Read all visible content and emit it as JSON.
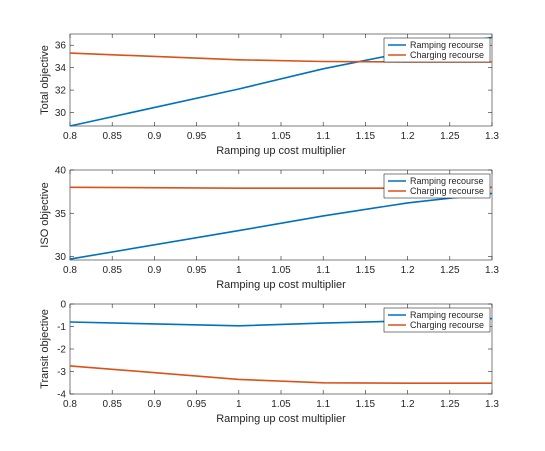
{
  "chart_data": [
    {
      "type": "line",
      "xlabel": "Ramping up cost multiplier",
      "ylabel": "Total objective",
      "xlim": [
        0.8,
        1.3
      ],
      "ylim": [
        28.8,
        37
      ],
      "xticks": [
        0.8,
        0.85,
        0.9,
        0.95,
        1,
        1.05,
        1.1,
        1.15,
        1.2,
        1.25,
        1.3
      ],
      "xtick_labels": [
        "0.8",
        "0.85",
        "0.9",
        "0.95",
        "1",
        "1.05",
        "1.1",
        "1.15",
        "1.2",
        "1.25",
        "1.3"
      ],
      "yticks": [
        30,
        32,
        34,
        36
      ],
      "ytick_labels": [
        "30",
        "32",
        "34",
        "36"
      ],
      "legend_position": "top-right",
      "series": [
        {
          "name": "Ramping recourse",
          "color": "#0072BD",
          "x": [
            0.8,
            1.0,
            1.1,
            1.2,
            1.3
          ],
          "y": [
            28.8,
            32.1,
            33.9,
            35.4,
            36.7
          ]
        },
        {
          "name": "Charging recourse",
          "color": "#D95319",
          "x": [
            0.8,
            1.0,
            1.1,
            1.2,
            1.3
          ],
          "y": [
            35.3,
            34.7,
            34.55,
            34.5,
            34.5
          ]
        }
      ]
    },
    {
      "type": "line",
      "xlabel": "Ramping up cost multiplier",
      "ylabel": "ISO objective",
      "xlim": [
        0.8,
        1.3
      ],
      "ylim": [
        29.6,
        40
      ],
      "xticks": [
        0.8,
        0.85,
        0.9,
        0.95,
        1,
        1.05,
        1.1,
        1.15,
        1.2,
        1.25,
        1.3
      ],
      "xtick_labels": [
        "0.8",
        "0.85",
        "0.9",
        "0.95",
        "1",
        "1.05",
        "1.1",
        "1.15",
        "1.2",
        "1.25",
        "1.3"
      ],
      "yticks": [
        30,
        35,
        40
      ],
      "ytick_labels": [
        "30",
        "35",
        "40"
      ],
      "legend_position": "top-right",
      "series": [
        {
          "name": "Ramping recourse",
          "color": "#0072BD",
          "x": [
            0.8,
            1.0,
            1.1,
            1.2,
            1.3
          ],
          "y": [
            29.7,
            33.0,
            34.7,
            36.2,
            37.3
          ]
        },
        {
          "name": "Charging recourse",
          "color": "#D95319",
          "x": [
            0.8,
            1.0,
            1.1,
            1.2,
            1.3
          ],
          "y": [
            38.0,
            37.9,
            37.9,
            37.9,
            38.0
          ]
        }
      ]
    },
    {
      "type": "line",
      "xlabel": "Ramping up cost multiplier",
      "ylabel": "Transit objective",
      "xlim": [
        0.8,
        1.3
      ],
      "ylim": [
        -4,
        0
      ],
      "xticks": [
        0.8,
        0.85,
        0.9,
        0.95,
        1,
        1.05,
        1.1,
        1.15,
        1.2,
        1.25,
        1.3
      ],
      "xtick_labels": [
        "0.8",
        "0.85",
        "0.9",
        "0.95",
        "1",
        "1.05",
        "1.1",
        "1.15",
        "1.2",
        "1.25",
        "1.3"
      ],
      "yticks": [
        -4,
        -3,
        -2,
        -1,
        0
      ],
      "ytick_labels": [
        "-4",
        "-3",
        "-2",
        "-1",
        "0"
      ],
      "legend_position": "top-right",
      "series": [
        {
          "name": "Ramping recourse",
          "color": "#0072BD",
          "x": [
            0.8,
            1.0,
            1.1,
            1.2,
            1.3
          ],
          "y": [
            -0.8,
            -0.97,
            -0.85,
            -0.75,
            -0.65
          ]
        },
        {
          "name": "Charging recourse",
          "color": "#D95319",
          "x": [
            0.8,
            1.0,
            1.1,
            1.2,
            1.3
          ],
          "y": [
            -2.75,
            -3.35,
            -3.5,
            -3.52,
            -3.52
          ]
        }
      ]
    }
  ]
}
